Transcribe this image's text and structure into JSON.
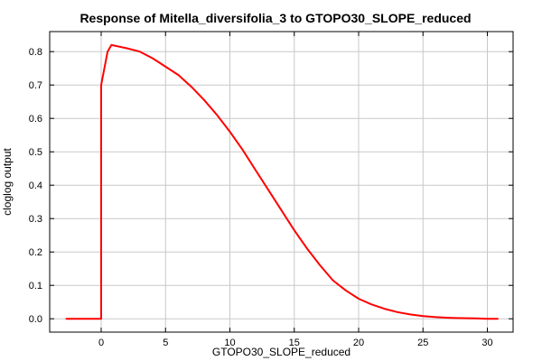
{
  "chart_data": {
    "type": "line",
    "title": "Response of Mitella_diversifolia_3 to GTOPO30_SLOPE_reduced",
    "xlabel": "GTOPO30_SLOPE_reduced",
    "ylabel": "cloglog output",
    "xlim": [
      -4,
      32
    ],
    "ylim": [
      -0.04,
      0.86
    ],
    "xticks": [
      0,
      5,
      10,
      15,
      20,
      25,
      30
    ],
    "yticks": [
      0.0,
      0.1,
      0.2,
      0.3,
      0.4,
      0.5,
      0.6,
      0.7,
      0.8
    ],
    "grid": true,
    "series": [
      {
        "color": "#ff0000",
        "x": [
          -2.7,
          0.0,
          0.0,
          0.05,
          0.5,
          0.8,
          1.0,
          2.0,
          3.0,
          4.0,
          5.0,
          6.0,
          7.0,
          8.0,
          9.0,
          10.0,
          11.0,
          12.0,
          13.0,
          14.0,
          15.0,
          16.0,
          17.0,
          18.0,
          19.0,
          20.0,
          21.0,
          22.0,
          23.0,
          24.0,
          25.0,
          26.0,
          27.0,
          28.0,
          29.0,
          30.0,
          30.8
        ],
        "y": [
          0.0,
          0.0,
          0.7,
          0.71,
          0.8,
          0.82,
          0.818,
          0.81,
          0.8,
          0.78,
          0.755,
          0.73,
          0.695,
          0.655,
          0.61,
          0.56,
          0.505,
          0.445,
          0.385,
          0.325,
          0.265,
          0.21,
          0.16,
          0.115,
          0.085,
          0.06,
          0.043,
          0.03,
          0.02,
          0.013,
          0.008,
          0.005,
          0.003,
          0.002,
          0.001,
          0.0,
          0.0
        ]
      }
    ]
  }
}
